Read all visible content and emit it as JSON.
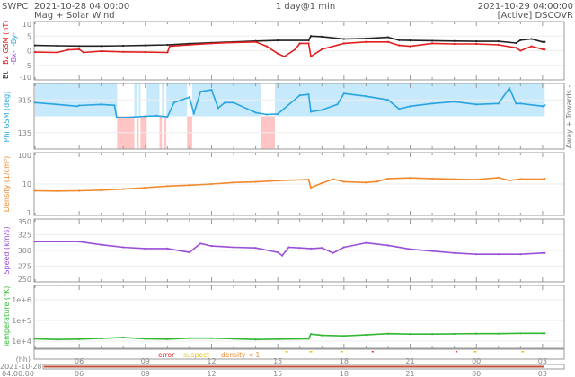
{
  "header": {
    "org": "SWPC",
    "start": "2021-10-28 04:00:00",
    "title": "Mag + Solar Wind",
    "span": "1 day@1 min",
    "end": "2021-10-29 04:00:00",
    "source": "[Active] DSCOVR"
  },
  "colors": {
    "bt": "#222222",
    "bz": "#e02020",
    "bx": "#9b4fd6",
    "by": "#29a8e0",
    "phi": "#2aa4e0",
    "phi_away": "#c6e9fb",
    "phi_toward": "#ffc4c4",
    "density": "#f08a2c",
    "speed": "#9a4fd8",
    "temperature": "#33b833",
    "error": "#e03030",
    "suspect": "#e8c020",
    "density_low": "#f08a2c"
  },
  "chart_data": [
    {
      "type": "line",
      "key": "mag",
      "ylabel": {
        "bt": "Bt",
        "bz": "Bz GSM (nT)",
        "bx": "-Bx-",
        "by": "-By-"
      },
      "ylim": [
        -10,
        10
      ],
      "yticks": [
        "10",
        "5",
        "0",
        "-5",
        "-10"
      ],
      "ytick_values": [
        10,
        5,
        0,
        -5,
        -10
      ],
      "x_unit": "hours since 2021-10-28 04:00",
      "series": [
        {
          "name": "Bt",
          "color_key": "bt",
          "points": [
            [
              0,
              1.8
            ],
            [
              1,
              1.7
            ],
            [
              2,
              1.6
            ],
            [
              3,
              1.6
            ],
            [
              4,
              1.7
            ],
            [
              5,
              1.8
            ],
            [
              6,
              2.0
            ],
            [
              7,
              2.4
            ],
            [
              8,
              2.7
            ],
            [
              9,
              3.0
            ],
            [
              10,
              3.3
            ],
            [
              11,
              3.5
            ],
            [
              12.4,
              3.5
            ],
            [
              12.5,
              5.0
            ],
            [
              13,
              4.8
            ],
            [
              14,
              4.0
            ],
            [
              15,
              4.2
            ],
            [
              16,
              4.6
            ],
            [
              16.5,
              3.6
            ],
            [
              17,
              3.5
            ],
            [
              18,
              3.4
            ],
            [
              19,
              3.3
            ],
            [
              20,
              3.2
            ],
            [
              21,
              3.2
            ],
            [
              21.8,
              2.6
            ],
            [
              22,
              3.6
            ],
            [
              22.5,
              4.0
            ],
            [
              23,
              3.0
            ],
            [
              23.1,
              3.0
            ]
          ]
        },
        {
          "name": "Bz GSM",
          "color_key": "bz",
          "points": [
            [
              0,
              -0.5
            ],
            [
              1,
              -0.6
            ],
            [
              1.5,
              0.3
            ],
            [
              2,
              0.5
            ],
            [
              2.2,
              -0.6
            ],
            [
              3,
              -0.2
            ],
            [
              4,
              -0.4
            ],
            [
              5,
              -0.5
            ],
            [
              6,
              -0.6
            ],
            [
              6.1,
              1.5
            ],
            [
              7,
              2.0
            ],
            [
              8,
              2.5
            ],
            [
              9,
              2.8
            ],
            [
              10,
              3.0
            ],
            [
              10.5,
              1.5
            ],
            [
              11,
              -1.0
            ],
            [
              11.3,
              -2.0
            ],
            [
              11.8,
              0.5
            ],
            [
              12,
              2.5
            ],
            [
              12.4,
              2.5
            ],
            [
              12.5,
              -2.0
            ],
            [
              13,
              0.5
            ],
            [
              14,
              2.5
            ],
            [
              15,
              3.0
            ],
            [
              16,
              3.0
            ],
            [
              16.5,
              1.8
            ],
            [
              17,
              1.5
            ],
            [
              18,
              2.5
            ],
            [
              19,
              2.3
            ],
            [
              20,
              2.3
            ],
            [
              21,
              2.0
            ],
            [
              21.8,
              1.0
            ],
            [
              22,
              0.0
            ],
            [
              22.5,
              1.5
            ],
            [
              23,
              0.5
            ],
            [
              23.1,
              0.4
            ]
          ]
        }
      ]
    },
    {
      "type": "line",
      "key": "phi",
      "ylabel": "Phi GSM (deg)",
      "side_label": "Away + Towards -",
      "ylim": [
        45,
        405
      ],
      "yticks": [
        "315",
        "135"
      ],
      "ytick_values": [
        315,
        135
      ],
      "away_range": [
        225,
        405
      ],
      "toward_spans_hours": [
        [
          3.72,
          4.5
        ],
        [
          4.6,
          4.7
        ],
        [
          4.78,
          5.06
        ],
        [
          5.64,
          5.75
        ],
        [
          5.84,
          5.95
        ],
        [
          6.89,
          7.12
        ],
        [
          10.24,
          10.87
        ]
      ],
      "series": [
        {
          "name": "Phi GSM",
          "color_key": "phi",
          "points": [
            [
              0,
              300
            ],
            [
              1,
              290
            ],
            [
              1.9,
              280
            ],
            [
              2,
              284
            ],
            [
              3,
              290
            ],
            [
              3.6,
              285
            ],
            [
              3.7,
              220
            ],
            [
              4,
              218
            ],
            [
              5,
              225
            ],
            [
              5.5,
              228
            ],
            [
              6,
              222
            ],
            [
              6.3,
              300
            ],
            [
              7,
              330
            ],
            [
              7.2,
              240
            ],
            [
              7.5,
              360
            ],
            [
              8,
              370
            ],
            [
              8.3,
              270
            ],
            [
              8.6,
              300
            ],
            [
              9,
              300
            ],
            [
              10,
              245
            ],
            [
              10.5,
              235
            ],
            [
              11,
              238
            ],
            [
              12,
              340
            ],
            [
              12.4,
              345
            ],
            [
              12.5,
              250
            ],
            [
              13,
              260
            ],
            [
              13.7,
              290
            ],
            [
              14,
              350
            ],
            [
              15,
              335
            ],
            [
              16,
              315
            ],
            [
              16.5,
              265
            ],
            [
              17,
              280
            ],
            [
              18,
              295
            ],
            [
              19,
              305
            ],
            [
              20,
              290
            ],
            [
              21,
              295
            ],
            [
              21.5,
              380
            ],
            [
              21.8,
              295
            ],
            [
              22,
              295
            ],
            [
              23,
              280
            ],
            [
              23.1,
              285
            ]
          ]
        }
      ]
    },
    {
      "type": "line",
      "key": "density",
      "ylabel": "Density (1/cm³)",
      "yscale": "log",
      "ylim": [
        1,
        100
      ],
      "yticks": [
        "100",
        "10",
        "1"
      ],
      "ytick_values": [
        100,
        10,
        1
      ],
      "series": [
        {
          "name": "Density",
          "color_key": "density",
          "points": [
            [
              0,
              6.1
            ],
            [
              1,
              6.0
            ],
            [
              2,
              6.1
            ],
            [
              3,
              6.4
            ],
            [
              4,
              6.9
            ],
            [
              5,
              7.7
            ],
            [
              6,
              8.6
            ],
            [
              7,
              9.2
            ],
            [
              8,
              10
            ],
            [
              9,
              11.2
            ],
            [
              10,
              11.7
            ],
            [
              11,
              12.8
            ],
            [
              12.4,
              13.9
            ],
            [
              12.5,
              7.7
            ],
            [
              13,
              10.7
            ],
            [
              13.5,
              14.3
            ],
            [
              14,
              11.9
            ],
            [
              15,
              11.2
            ],
            [
              15.5,
              12
            ],
            [
              16,
              14.9
            ],
            [
              17,
              15.6
            ],
            [
              18,
              14.9
            ],
            [
              19,
              14.3
            ],
            [
              20,
              13.9
            ],
            [
              21,
              16
            ],
            [
              21.5,
              13
            ],
            [
              22,
              14.5
            ],
            [
              23,
              14.3
            ],
            [
              23.1,
              14.8
            ]
          ]
        }
      ]
    },
    {
      "type": "line",
      "key": "speed",
      "ylabel": "Speed (km/s)",
      "ylim": [
        250,
        350
      ],
      "yticks": [
        "350",
        "325",
        "300",
        "275",
        "250"
      ],
      "ytick_values": [
        350,
        325,
        300,
        275,
        250
      ],
      "series": [
        {
          "name": "Speed",
          "color_key": "speed",
          "points": [
            [
              0,
              314
            ],
            [
              1,
              314
            ],
            [
              2,
              314
            ],
            [
              3,
              309
            ],
            [
              4,
              305
            ],
            [
              5,
              303
            ],
            [
              6,
              303
            ],
            [
              7,
              297
            ],
            [
              7.5,
              311
            ],
            [
              8,
              307
            ],
            [
              9,
              305
            ],
            [
              10,
              304
            ],
            [
              11,
              297
            ],
            [
              11.2,
              292
            ],
            [
              11.5,
              305
            ],
            [
              12,
              304
            ],
            [
              12.5,
              303
            ],
            [
              13,
              304
            ],
            [
              13.5,
              296
            ],
            [
              14,
              305
            ],
            [
              15,
              312
            ],
            [
              16,
              308
            ],
            [
              17,
              302
            ],
            [
              18,
              299
            ],
            [
              19,
              296
            ],
            [
              20,
              294
            ],
            [
              21,
              294
            ],
            [
              22,
              294
            ],
            [
              23,
              296
            ],
            [
              23.1,
              296
            ]
          ]
        }
      ]
    },
    {
      "type": "line",
      "key": "temperature",
      "ylabel": "Temperature (°K)",
      "yscale": "log",
      "ylim": [
        4500,
        5000000
      ],
      "yticks": [
        "1e+6",
        "1e+5",
        "1e+4"
      ],
      "ytick_values": [
        1000000,
        100000,
        10000
      ],
      "series": [
        {
          "name": "Temperature",
          "color_key": "temperature",
          "points": [
            [
              0,
              13000
            ],
            [
              1,
              12000
            ],
            [
              2,
              12500
            ],
            [
              3,
              13500
            ],
            [
              4,
              15000
            ],
            [
              5,
              13000
            ],
            [
              6,
              12500
            ],
            [
              7,
              14000
            ],
            [
              8,
              14000
            ],
            [
              9,
              13000
            ],
            [
              10,
              12000
            ],
            [
              11,
              12500
            ],
            [
              12.4,
              13000
            ],
            [
              12.5,
              22000
            ],
            [
              13,
              19000
            ],
            [
              14,
              18000
            ],
            [
              15,
              20000
            ],
            [
              16,
              23000
            ],
            [
              17,
              22000
            ],
            [
              18,
              22000
            ],
            [
              19,
              22500
            ],
            [
              20,
              23000
            ],
            [
              21,
              23000
            ],
            [
              22,
              24000
            ],
            [
              23,
              24000
            ],
            [
              23.1,
              24000
            ]
          ]
        }
      ]
    }
  ],
  "flags": {
    "legend": {
      "error": "error",
      "suspect": "suspect",
      "density_low": "density < 1"
    },
    "error_hours": [
      15.3,
      19.1
    ],
    "suspect_hours": [
      11.4,
      12.5,
      13.9,
      19.95,
      22.1
    ]
  },
  "time_axis": {
    "unit_label": "(hh)",
    "date_label": "2021-10-28",
    "time_label": "04:00:00",
    "ticks": [
      "06",
      "09",
      "12",
      "15",
      "18",
      "21",
      "00",
      "03"
    ],
    "tick_hours": [
      2,
      5,
      8,
      11,
      14,
      17,
      20,
      23
    ]
  }
}
